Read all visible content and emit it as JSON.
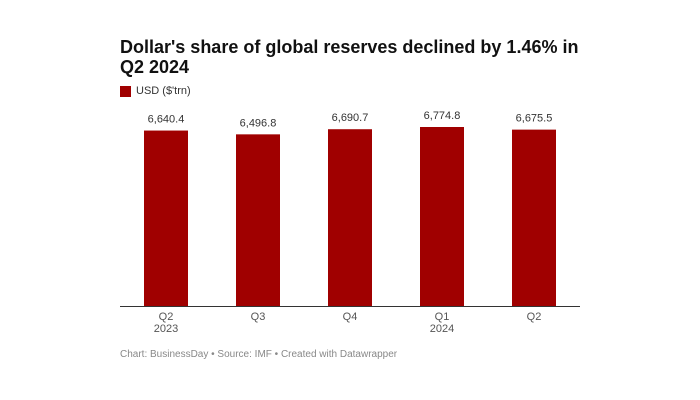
{
  "chart_data": {
    "type": "bar",
    "title": "Dollar's share of global reserves declined by 1.46% in Q2 2024",
    "categories": [
      "Q2\n2023",
      "Q3",
      "Q4",
      "Q1\n2024",
      "Q2"
    ],
    "series": [
      {
        "name": "USD ($'trn)",
        "color": "#a00000",
        "values": [
          6640.4,
          6496.8,
          6690.7,
          6774.8,
          6675.5
        ],
        "value_labels": [
          "6,640.4",
          "6,496.8",
          "6,690.7",
          "6,774.8",
          "6,675.5"
        ]
      }
    ],
    "footer": "Chart: BusinessDay • Source: IMF • Created with Datawrapper"
  }
}
